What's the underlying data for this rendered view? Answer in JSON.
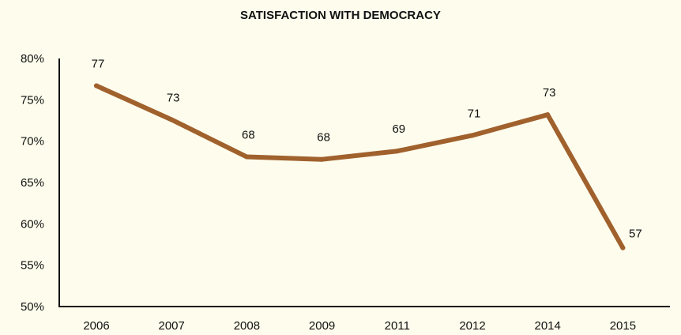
{
  "chart_data": {
    "type": "line",
    "title": "SATISFACTION WITH DEMOCRACY",
    "xlabel": "",
    "ylabel": "",
    "categories": [
      "2006",
      "2007",
      "2008",
      "2009",
      "2011",
      "2012",
      "2014",
      "2015"
    ],
    "series": [
      {
        "name": "Satisfaction with democracy",
        "values": [
          76.7,
          72.6,
          68.1,
          67.8,
          68.8,
          70.7,
          73.2,
          57.1
        ],
        "data_labels": [
          "77",
          "73",
          "68",
          "68",
          "69",
          "71",
          "73",
          "57"
        ],
        "color": "#A0612D"
      }
    ],
    "ylim": [
      50,
      80
    ],
    "yticks": [
      50,
      55,
      60,
      65,
      70,
      75,
      80
    ],
    "ytick_labels": [
      "50%",
      "55%",
      "60%",
      "65%",
      "70%",
      "75%",
      "80%"
    ],
    "grid": false,
    "legend": "none"
  }
}
